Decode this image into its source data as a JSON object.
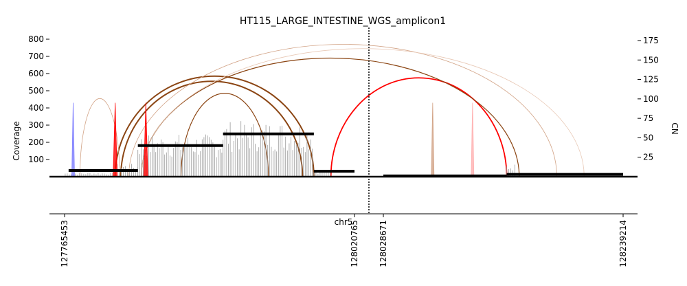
{
  "chart_data": {
    "type": "line",
    "title": "HT115_LARGE_INTESTINE_WGS_amplicon1",
    "xlabel": "chr5",
    "ylabel_left": "Coverage",
    "ylabel_right": "CN",
    "left_ticks": [
      100,
      200,
      300,
      400,
      500,
      600,
      700,
      800
    ],
    "left_tick_labels": [
      "100",
      "200",
      "300",
      "400",
      "500",
      "600",
      "700",
      "800"
    ],
    "right_ticks": [
      25,
      50,
      75,
      100,
      125,
      150,
      175
    ],
    "right_tick_labels": [
      "25",
      "50",
      "75",
      "100",
      "125",
      "150",
      "175"
    ],
    "ylim_coverage": [
      0,
      860
    ],
    "ylim_cn": [
      0,
      190
    ],
    "x_ticks": [
      "127765453",
      "128020765",
      "128028671",
      "128239214"
    ],
    "segments": [
      {
        "name": "127765453-128020765",
        "start": 127765453,
        "end": 128020765
      },
      {
        "name": "128028671-128239214",
        "start": 128028671,
        "end": 128239214
      }
    ],
    "segment_break_coordinate": 128024718,
    "copy_number_segments": [
      {
        "start": 127769000,
        "end": 127830000,
        "cn": 8
      },
      {
        "start": 127830000,
        "end": 127905000,
        "cn": 40
      },
      {
        "start": 127905000,
        "end": 127985000,
        "cn": 55
      },
      {
        "start": 127985000,
        "end": 128020765,
        "cn": 7
      },
      {
        "start": 128028671,
        "end": 128137000,
        "cn": 1
      },
      {
        "start": 128137000,
        "end": 128239214,
        "cn": 3
      }
    ],
    "coverage_series": {
      "name": "Coverage",
      "color": "#808080",
      "regions": [
        {
          "start": 127766000,
          "end": 127810000,
          "level": 20
        },
        {
          "start": 127810000,
          "end": 127830000,
          "level": 60
        },
        {
          "start": 127830000,
          "end": 127905000,
          "level": 200
        },
        {
          "start": 127905000,
          "end": 127985000,
          "level": 260
        },
        {
          "start": 127985000,
          "end": 128000000,
          "level": 30
        },
        {
          "start": 128137000,
          "end": 128145000,
          "level": 60
        }
      ]
    },
    "breakpoint_arcs": [
      {
        "type": "deletion-like",
        "color": "#ff0000",
        "start": 128000000,
        "end": 128137000,
        "height": 575
      },
      {
        "type": "inversion",
        "color": "#8b4513",
        "start": 127810000,
        "end": 127985000,
        "height": 585
      },
      {
        "type": "inversion",
        "color": "#8b4513",
        "start": 127815000,
        "end": 127975000,
        "height": 555
      },
      {
        "type": "inversion",
        "color": "#8b4513",
        "start": 127868000,
        "end": 127945000,
        "height": 485
      },
      {
        "type": "inversion",
        "color": "#8b4513",
        "start": 127833000,
        "end": 128148000,
        "height": 690
      },
      {
        "type": "low-support",
        "color": "#d2a386",
        "start": 127779000,
        "end": 127814000,
        "height": 455
      },
      {
        "type": "low-support",
        "color": "#d2a386",
        "start": 127822000,
        "end": 128181000,
        "height": 770
      },
      {
        "type": "low-support",
        "color": "#e8c8b5",
        "start": 127833000,
        "end": 128205000,
        "height": 745
      }
    ],
    "spikes": [
      {
        "pos": 127773000,
        "value": 430,
        "color": "#8080ff"
      },
      {
        "pos": 127810000,
        "value": 430,
        "color": "#ff0000"
      },
      {
        "pos": 127837000,
        "value": 430,
        "color": "#ff0000"
      },
      {
        "pos": 128072000,
        "value": 430,
        "color": "#d2a386"
      },
      {
        "pos": 128107000,
        "value": 430,
        "color": "#ffb0b0"
      }
    ],
    "grid": false
  }
}
